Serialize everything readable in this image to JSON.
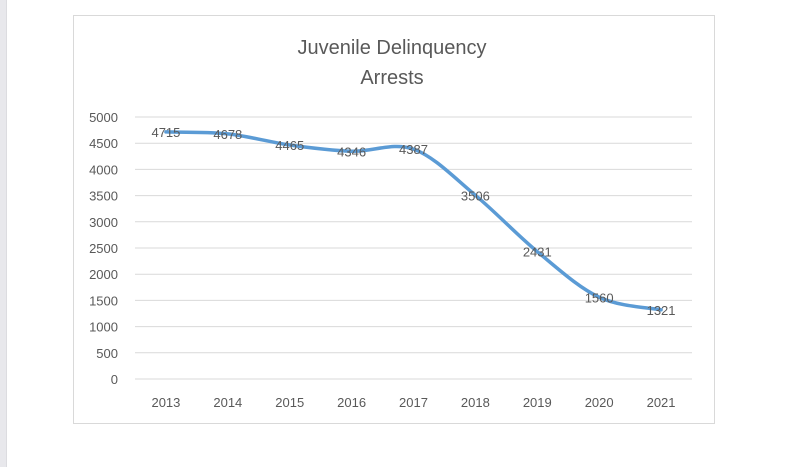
{
  "chart_data": {
    "type": "line",
    "title_lines": [
      "Juvenile Delinquency",
      "Arrests"
    ],
    "categories": [
      "2013",
      "2014",
      "2015",
      "2016",
      "2017",
      "2018",
      "2019",
      "2020",
      "2021"
    ],
    "series": [
      {
        "values": [
          4715,
          4678,
          4465,
          4346,
          4387,
          3506,
          2431,
          1560,
          1321
        ]
      }
    ],
    "ylim": [
      0,
      5000
    ],
    "yticks": [
      0,
      500,
      1000,
      1500,
      2000,
      2500,
      3000,
      3500,
      4000,
      4500,
      5000
    ],
    "grid": true,
    "line_color": "#5b9bd5",
    "smooth": true,
    "data_labels": true
  }
}
